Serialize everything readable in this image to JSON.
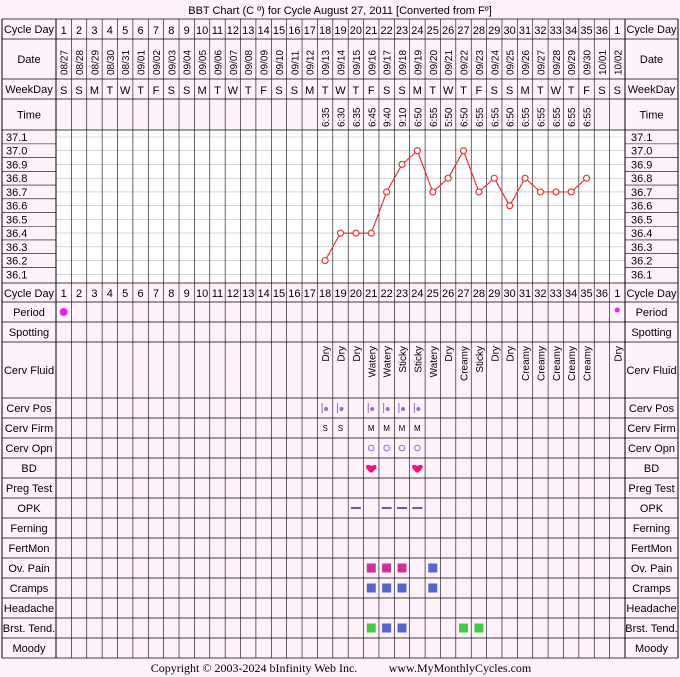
{
  "title": "BBT Chart (C º) for Cycle August 27, 2011  [Converted from Fº]",
  "footer": {
    "copyright": "Copyright © 2003-2024 bInfinity Web Inc.",
    "url": "www.MyMonthlyCycles.com"
  },
  "labels": {
    "cycle_day": "Cycle Day",
    "date": "Date",
    "weekday": "WeekDay",
    "time": "Time"
  },
  "cycle_days": [
    "1",
    "2",
    "3",
    "4",
    "5",
    "6",
    "7",
    "8",
    "9",
    "10",
    "11",
    "12",
    "13",
    "14",
    "15",
    "16",
    "17",
    "18",
    "19",
    "20",
    "21",
    "22",
    "23",
    "24",
    "25",
    "26",
    "27",
    "28",
    "29",
    "30",
    "31",
    "32",
    "33",
    "34",
    "35",
    "36",
    "1"
  ],
  "dates": [
    "08/27",
    "08/28",
    "08/29",
    "08/30",
    "08/31",
    "09/01",
    "09/02",
    "09/03",
    "09/04",
    "09/05",
    "09/06",
    "09/07",
    "09/08",
    "09/09",
    "09/10",
    "09/11",
    "09/12",
    "09/13",
    "09/14",
    "09/15",
    "09/16",
    "09/17",
    "09/18",
    "09/19",
    "09/20",
    "09/21",
    "09/22",
    "09/23",
    "09/24",
    "09/25",
    "09/26",
    "09/27",
    "09/28",
    "09/29",
    "09/30",
    "10/01",
    "10/02"
  ],
  "weekdays": [
    "S",
    "S",
    "M",
    "T",
    "W",
    "T",
    "F",
    "S",
    "S",
    "M",
    "T",
    "W",
    "T",
    "F",
    "S",
    "S",
    "M",
    "T",
    "W",
    "T",
    "F",
    "S",
    "S",
    "M",
    "T",
    "W",
    "T",
    "F",
    "S",
    "S",
    "M",
    "T",
    "W",
    "T",
    "F",
    "S",
    "S"
  ],
  "times": [
    "",
    "",
    "",
    "",
    "",
    "",
    "",
    "",
    "",
    "",
    "",
    "",
    "",
    "",
    "",
    "",
    "",
    "6:35",
    "6:30",
    "6:35",
    "6:45",
    "9:40",
    "9:10",
    "6:50",
    "6:55",
    "5:50",
    "6:50",
    "6:55",
    "6:55",
    "6:50",
    "6:55",
    "6:55",
    "6:55",
    "6:55",
    "6:55",
    "",
    ""
  ],
  "temp_ticks": [
    "37.1",
    "37.0",
    "36.9",
    "36.8",
    "36.7",
    "36.6",
    "36.5",
    "36.4",
    "36.3",
    "36.2",
    "36.1"
  ],
  "colors": {
    "background": "#fff3fb",
    "temp_area": "#ffffff",
    "temp_line": "#ee3333",
    "grid": "#000000",
    "period": "#ee22ee",
    "bd": "#ee1188",
    "pain_pink": "#cc3399",
    "pain_blue": "#5566cc",
    "tend_green": "#44cc44",
    "opk": "#6655cc",
    "cervix": "#9966cc"
  },
  "chart_data": {
    "type": "line",
    "title": "BBT Chart (C º) for Cycle August 27, 2011  [Converted from Fº]",
    "xlabel": "Cycle Day",
    "ylabel": "",
    "ylim": [
      36.1,
      37.1
    ],
    "categories": [
      "1",
      "2",
      "3",
      "4",
      "5",
      "6",
      "7",
      "8",
      "9",
      "10",
      "11",
      "12",
      "13",
      "14",
      "15",
      "16",
      "17",
      "18",
      "19",
      "20",
      "21",
      "22",
      "23",
      "24",
      "25",
      "26",
      "27",
      "28",
      "29",
      "30",
      "31",
      "32",
      "33",
      "34",
      "35",
      "36",
      "1"
    ],
    "series": [
      {
        "values": [
          null,
          null,
          null,
          null,
          null,
          null,
          null,
          null,
          null,
          null,
          null,
          null,
          null,
          null,
          null,
          null,
          null,
          36.2,
          36.4,
          36.4,
          36.4,
          36.7,
          36.9,
          37.0,
          36.7,
          36.8,
          37.0,
          36.7,
          36.8,
          36.6,
          36.8,
          36.7,
          36.7,
          36.7,
          36.8,
          null,
          null
        ]
      }
    ],
    "grid": true
  },
  "rows": [
    {
      "label": "Period",
      "marks": [
        {
          "day": 1,
          "type": "dot",
          "color": "#ee22ee"
        },
        {
          "day": 37,
          "type": "smalldot",
          "color": "#ee22ee"
        }
      ]
    },
    {
      "label": "Spotting",
      "marks": []
    },
    {
      "label": "Cerv Fluid",
      "tall": true,
      "texts": {
        "18": "Dry",
        "19": "Dry",
        "20": "Dry",
        "21": "Watery",
        "22": "Watery",
        "23": "Sticky",
        "24": "Sticky",
        "25": "Watery",
        "26": "Dry",
        "27": "Creamy",
        "28": "Sticky",
        "29": "Dry",
        "30": "Dry",
        "31": "Creamy",
        "32": "Creamy",
        "33": "Creamy",
        "34": "Creamy",
        "35": "Creamy",
        "37": "Dry"
      }
    },
    {
      "label": "Cerv Pos",
      "marks": [
        {
          "day": 18,
          "type": "cpos",
          "color": "#9966cc"
        },
        {
          "day": 19,
          "type": "cpos",
          "color": "#9966cc"
        },
        {
          "day": 21,
          "type": "cpos",
          "color": "#9966cc"
        },
        {
          "day": 22,
          "type": "cpos",
          "color": "#9966cc"
        },
        {
          "day": 23,
          "type": "cpos",
          "color": "#9966cc"
        },
        {
          "day": 24,
          "type": "cpos",
          "color": "#9966cc"
        }
      ]
    },
    {
      "label": "Cerv Firm",
      "letters": {
        "18": "S",
        "19": "S",
        "21": "M",
        "22": "M",
        "23": "M",
        "24": "M"
      }
    },
    {
      "label": "Cerv Opn",
      "marks": [
        {
          "day": 21,
          "type": "circle",
          "color": "#9966cc"
        },
        {
          "day": 22,
          "type": "circle",
          "color": "#9966cc"
        },
        {
          "day": 23,
          "type": "circle",
          "color": "#9966cc"
        },
        {
          "day": 24,
          "type": "circle",
          "color": "#9966cc"
        }
      ]
    },
    {
      "label": "BD",
      "marks": [
        {
          "day": 21,
          "type": "heart",
          "color": "#ee1188"
        },
        {
          "day": 24,
          "type": "heart",
          "color": "#ee1188"
        }
      ]
    },
    {
      "label": "Preg Test",
      "marks": []
    },
    {
      "label": "OPK",
      "marks": [
        {
          "day": 20,
          "type": "dash",
          "color": "#6655cc"
        },
        {
          "day": 22,
          "type": "dash",
          "color": "#6655cc"
        },
        {
          "day": 23,
          "type": "dash",
          "color": "#6655cc"
        },
        {
          "day": 24,
          "type": "dash",
          "color": "#6655cc"
        }
      ]
    },
    {
      "label": "Ferning",
      "marks": []
    },
    {
      "label": "FertMon",
      "marks": []
    },
    {
      "label": "Ov. Pain",
      "marks": [
        {
          "day": 21,
          "type": "sq",
          "color": "#cc3399"
        },
        {
          "day": 22,
          "type": "sq",
          "color": "#cc3399"
        },
        {
          "day": 23,
          "type": "sq",
          "color": "#cc3399"
        },
        {
          "day": 25,
          "type": "sq",
          "color": "#5566cc"
        }
      ]
    },
    {
      "label": "Cramps",
      "marks": [
        {
          "day": 21,
          "type": "sq",
          "color": "#5566cc"
        },
        {
          "day": 22,
          "type": "sq",
          "color": "#5566cc"
        },
        {
          "day": 23,
          "type": "sq",
          "color": "#5566cc"
        },
        {
          "day": 25,
          "type": "sq",
          "color": "#5566cc"
        }
      ]
    },
    {
      "label": "Headache",
      "marks": []
    },
    {
      "label": "Brst. Tend.",
      "marks": [
        {
          "day": 21,
          "type": "sq",
          "color": "#44cc44"
        },
        {
          "day": 22,
          "type": "sq",
          "color": "#5566cc"
        },
        {
          "day": 23,
          "type": "sq",
          "color": "#5566cc"
        },
        {
          "day": 27,
          "type": "sq",
          "color": "#44cc44"
        },
        {
          "day": 28,
          "type": "sq",
          "color": "#44cc44"
        }
      ]
    },
    {
      "label": "Moody",
      "marks": []
    }
  ]
}
